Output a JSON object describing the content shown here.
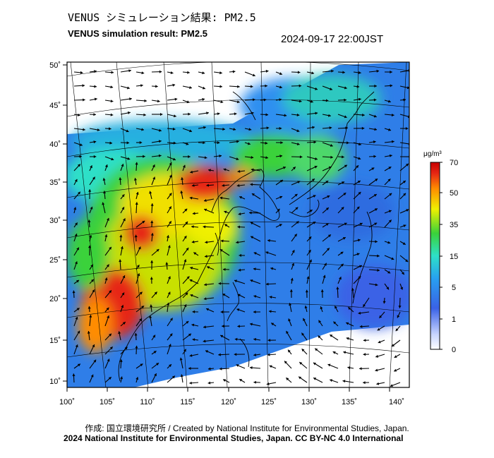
{
  "header": {
    "title_jp": "VENUS シミュレーション結果: PM2.5",
    "title_en": "VENUS simulation result: PM2.5",
    "timestamp": "2024-09-17 22:00JST"
  },
  "axes": {
    "lon_ticks": [
      "100˚",
      "105˚",
      "110˚",
      "115˚",
      "120˚",
      "125˚",
      "130˚",
      "135˚",
      "140˚"
    ],
    "lat_ticks": [
      "50˚",
      "45˚",
      "40˚",
      "35˚",
      "30˚",
      "25˚",
      "20˚",
      "15˚",
      "10˚"
    ]
  },
  "colorbar": {
    "unit": "μg/m³",
    "ticks": [
      "70",
      "50",
      "35",
      "15",
      "5",
      "1",
      "0"
    ],
    "colors": [
      "#ffffff",
      "#c8d4ff",
      "#3a62e6",
      "#28a0f0",
      "#2ee0c8",
      "#3ad23a",
      "#f0f000",
      "#ff8c00",
      "#e62814",
      "#c80000"
    ]
  },
  "footer": {
    "credit": "作成: 国立環境研究所 / Created by National Institute for Environmental Studies, Japan.",
    "copyright": "2024 National Institute for Environmental Studies, Japan. CC BY-NC 4.0 International"
  }
}
